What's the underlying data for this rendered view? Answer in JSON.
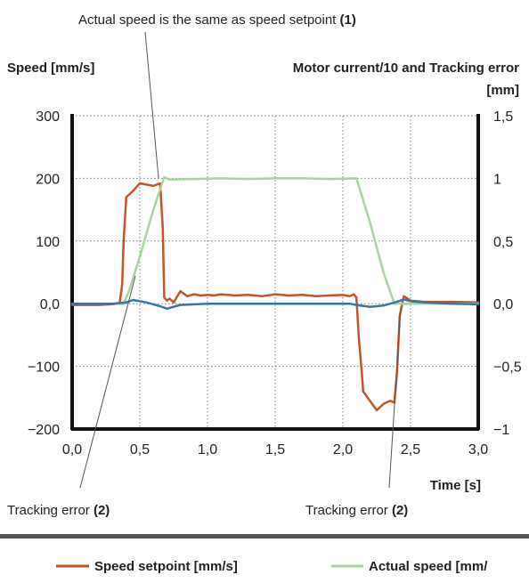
{
  "chart_data": {
    "type": "line",
    "annotation_top": {
      "text": "Actual speed is the same as speed setpoint ",
      "ref": "(1)"
    },
    "annotation_left": {
      "text": "Tracking error ",
      "ref": "(2)"
    },
    "annotation_right": {
      "text": "Tracking error ",
      "ref": "(2)"
    },
    "ylabel_left": "Speed [mm/s]",
    "ylabel_right_line1": "Motor current/10 and Tracking error",
    "ylabel_right_line2": "[mm]",
    "xlabel": "Time [s]",
    "xlim": [
      0,
      3
    ],
    "ylim_left": [
      -200,
      300
    ],
    "ylim_right": [
      -1,
      1.5
    ],
    "grid": true,
    "x_ticks": [
      {
        "value": 0,
        "label": "0,0"
      },
      {
        "value": 0.5,
        "label": "0,5"
      },
      {
        "value": 1,
        "label": "1,0"
      },
      {
        "value": 1.5,
        "label": "1,5"
      },
      {
        "value": 2,
        "label": "2,0"
      },
      {
        "value": 2.5,
        "label": "2,5"
      },
      {
        "value": 3,
        "label": "3,0"
      }
    ],
    "y_ticks_left": [
      {
        "value": 300,
        "label": "300"
      },
      {
        "value": 200,
        "label": "200"
      },
      {
        "value": 100,
        "label": "100"
      },
      {
        "value": 0,
        "label": "0,0"
      },
      {
        "value": -100,
        "label": "−100"
      },
      {
        "value": -200,
        "label": "−200"
      }
    ],
    "y_ticks_right": [
      {
        "value": 1.5,
        "label": "1,5"
      },
      {
        "value": 1,
        "label": "1"
      },
      {
        "value": 0.5,
        "label": "0,5"
      },
      {
        "value": 0,
        "label": "0,0"
      },
      {
        "value": -0.5,
        "label": "−0,5"
      },
      {
        "value": -1,
        "label": "−1"
      }
    ],
    "legend": {
      "placement": "bottom",
      "items": [
        {
          "label": "Speed setpoint [mm/s]",
          "color": "#c0562a"
        },
        {
          "label": "Actual speed [mm/",
          "color": "#a9d3a1"
        }
      ]
    },
    "series": [
      {
        "name": "Speed setpoint [mm/s]",
        "color": "#c0562a",
        "axis": "left",
        "x": [
          0.0,
          0.2,
          0.35,
          0.37,
          0.38,
          0.4,
          0.45,
          0.5,
          0.55,
          0.6,
          0.65,
          0.67,
          0.68,
          0.7,
          0.72,
          0.75,
          0.8,
          0.85,
          0.9,
          0.95,
          1.0,
          1.05,
          1.1,
          1.15,
          1.2,
          1.3,
          1.4,
          1.5,
          1.6,
          1.7,
          1.8,
          1.9,
          2.0,
          2.05,
          2.08,
          2.1,
          2.12,
          2.14,
          2.15,
          2.2,
          2.25,
          2.3,
          2.35,
          2.38,
          2.4,
          2.42,
          2.45,
          2.5,
          2.6,
          2.8,
          3.0
        ],
        "y": [
          -2,
          -2,
          0,
          30,
          100,
          170,
          180,
          192,
          190,
          188,
          192,
          120,
          10,
          5,
          8,
          2,
          20,
          12,
          15,
          13,
          14,
          13,
          15,
          14,
          13,
          14,
          12,
          15,
          13,
          14,
          12,
          13,
          14,
          12,
          15,
          10,
          -60,
          -110,
          -140,
          -155,
          -170,
          -160,
          -155,
          -158,
          -110,
          -20,
          12,
          5,
          3,
          3,
          2
        ]
      },
      {
        "name": "Actual speed [mm/",
        "color": "#a9d3a1",
        "axis": "left",
        "x": [
          0.0,
          0.38,
          0.42,
          0.5,
          0.6,
          0.68,
          0.72,
          0.9,
          1.1,
          1.3,
          1.5,
          1.7,
          1.9,
          2.1,
          2.2,
          2.3,
          2.38,
          2.45,
          2.6,
          3.0
        ],
        "y": [
          0,
          0,
          20,
          75,
          150,
          202,
          198,
          199,
          200,
          199,
          200,
          200,
          199,
          200,
          130,
          50,
          0,
          0,
          0,
          0
        ]
      },
      {
        "name": "Tracking error",
        "color": "#3a76a5",
        "axis": "left",
        "x": [
          0.0,
          0.3,
          0.4,
          0.45,
          0.5,
          0.55,
          0.6,
          0.65,
          0.7,
          0.75,
          0.8,
          1.0,
          1.5,
          2.0,
          2.05,
          2.1,
          2.2,
          2.3,
          2.4,
          2.45,
          2.5,
          2.6,
          2.8,
          3.0
        ],
        "y": [
          0,
          0,
          2,
          6,
          4,
          2,
          -1,
          -4,
          -8,
          -5,
          -2,
          0,
          0,
          0,
          0,
          -2,
          -5,
          -3,
          3,
          7,
          4,
          2,
          0,
          -1
        ]
      }
    ]
  }
}
